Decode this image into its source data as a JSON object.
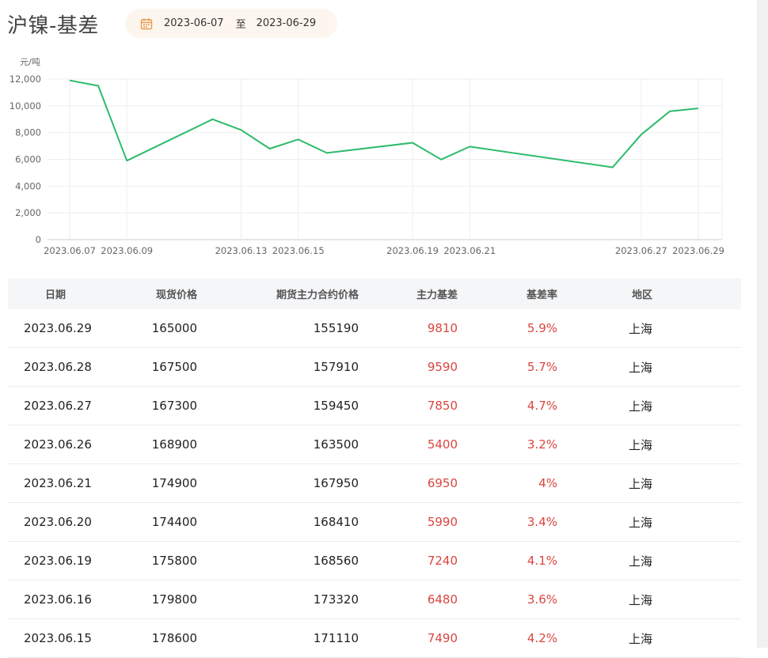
{
  "title": "沪镍-基差",
  "date_range": {
    "start": "2023-06-07",
    "separator": "至",
    "end": "2023-06-29",
    "icon": "calendar-icon",
    "icon_color": "#e89a4c"
  },
  "chart_data": {
    "type": "line",
    "ylabel": "元/吨",
    "ylim": [
      0,
      12000
    ],
    "yticks": [
      "12,000",
      "10,000",
      "8,000",
      "6,000",
      "4,000",
      "2,000",
      "0"
    ],
    "ytick_values": [
      12000,
      10000,
      8000,
      6000,
      4000,
      2000,
      0
    ],
    "xtick_labels": [
      "2023.06.07",
      "2023.06.09",
      "2023.06.13",
      "2023.06.15",
      "2023.06.19",
      "2023.06.21",
      "2023.06.27",
      "2023.06.29"
    ],
    "x": [
      "2023.06.07",
      "2023.06.08",
      "2023.06.09",
      "2023.06.12",
      "2023.06.13",
      "2023.06.14",
      "2023.06.15",
      "2023.06.16",
      "2023.06.19",
      "2023.06.20",
      "2023.06.21",
      "2023.06.26",
      "2023.06.27",
      "2023.06.28",
      "2023.06.29"
    ],
    "values": [
      11900,
      11500,
      5900,
      9000,
      8200,
      6800,
      7490,
      6480,
      7240,
      5990,
      6950,
      5400,
      7850,
      9590,
      9810
    ],
    "line_color": "#2dbb6b",
    "grid": true
  },
  "table": {
    "headers": {
      "date": "日期",
      "spot": "现货价格",
      "futures": "期货主力合约价格",
      "basis": "主力基差",
      "rate": "基差率",
      "region": "地区"
    },
    "rows": [
      {
        "date": "2023.06.29",
        "spot": "165000",
        "futures": "155190",
        "basis": "9810",
        "rate": "5.9%",
        "region": "上海"
      },
      {
        "date": "2023.06.28",
        "spot": "167500",
        "futures": "157910",
        "basis": "9590",
        "rate": "5.7%",
        "region": "上海"
      },
      {
        "date": "2023.06.27",
        "spot": "167300",
        "futures": "159450",
        "basis": "7850",
        "rate": "4.7%",
        "region": "上海"
      },
      {
        "date": "2023.06.26",
        "spot": "168900",
        "futures": "163500",
        "basis": "5400",
        "rate": "3.2%",
        "region": "上海"
      },
      {
        "date": "2023.06.21",
        "spot": "174900",
        "futures": "167950",
        "basis": "6950",
        "rate": "4%",
        "region": "上海"
      },
      {
        "date": "2023.06.20",
        "spot": "174400",
        "futures": "168410",
        "basis": "5990",
        "rate": "3.4%",
        "region": "上海"
      },
      {
        "date": "2023.06.19",
        "spot": "175800",
        "futures": "168560",
        "basis": "7240",
        "rate": "4.1%",
        "region": "上海"
      },
      {
        "date": "2023.06.16",
        "spot": "179800",
        "futures": "173320",
        "basis": "6480",
        "rate": "3.6%",
        "region": "上海"
      },
      {
        "date": "2023.06.15",
        "spot": "178600",
        "futures": "171110",
        "basis": "7490",
        "rate": "4.2%",
        "region": "上海"
      }
    ]
  },
  "colors": {
    "positive": "#d9463f",
    "header_bg": "#f5f6f8",
    "pill_bg": "#fdf6ef"
  }
}
